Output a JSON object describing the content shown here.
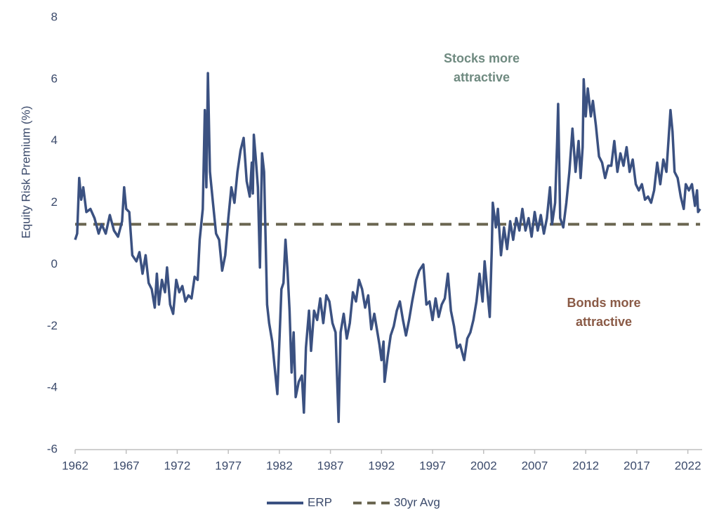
{
  "chart_data": {
    "type": "line",
    "y_label": "Equity Risk Premium (%)",
    "xlim": [
      1962,
      2023.4
    ],
    "ylim": [
      -6,
      8
    ],
    "xticks": [
      1962,
      1967,
      1972,
      1977,
      1982,
      1987,
      1992,
      1997,
      2002,
      2007,
      2012,
      2017,
      2022
    ],
    "yticks": [
      -6,
      -4,
      -2,
      0,
      2,
      4,
      6,
      8
    ],
    "annotations": [
      {
        "lines": [
          "Stocks more",
          "attractive"
        ],
        "color": "#6f8a80"
      },
      {
        "lines": [
          "Bonds more",
          "attractive"
        ],
        "color": "#8a5a46"
      }
    ],
    "series": [
      {
        "name": "ERP",
        "color": "#3b5181",
        "dashed": false,
        "x": [
          1962.0,
          1962.2,
          1962.4,
          1962.6,
          1962.8,
          1963.1,
          1963.5,
          1963.9,
          1964.3,
          1964.6,
          1965.0,
          1965.4,
          1965.8,
          1966.2,
          1966.6,
          1966.8,
          1967.0,
          1967.3,
          1967.6,
          1968.0,
          1968.3,
          1968.6,
          1968.9,
          1969.2,
          1969.5,
          1969.8,
          1970.0,
          1970.2,
          1970.5,
          1970.8,
          1971.0,
          1971.3,
          1971.6,
          1971.9,
          1972.2,
          1972.5,
          1972.8,
          1973.1,
          1973.4,
          1973.7,
          1974.0,
          1974.2,
          1974.5,
          1974.7,
          1974.85,
          1975.0,
          1975.2,
          1975.5,
          1975.8,
          1976.1,
          1976.4,
          1976.7,
          1977.0,
          1977.3,
          1977.6,
          1977.9,
          1978.2,
          1978.5,
          1978.8,
          1979.1,
          1979.3,
          1979.4,
          1979.5,
          1979.7,
          1979.9,
          1980.1,
          1980.3,
          1980.5,
          1980.8,
          1981.0,
          1981.3,
          1981.5,
          1981.8,
          1982.0,
          1982.2,
          1982.4,
          1982.6,
          1982.8,
          1983.0,
          1983.2,
          1983.4,
          1983.6,
          1983.9,
          1984.2,
          1984.4,
          1984.6,
          1984.9,
          1985.1,
          1985.4,
          1985.7,
          1986.0,
          1986.3,
          1986.6,
          1986.9,
          1987.2,
          1987.5,
          1987.8,
          1988.0,
          1988.3,
          1988.6,
          1988.9,
          1989.2,
          1989.5,
          1989.8,
          1990.1,
          1990.4,
          1990.7,
          1991.0,
          1991.3,
          1991.6,
          1991.8,
          1992.0,
          1992.2,
          1992.3,
          1992.6,
          1992.9,
          1993.2,
          1993.5,
          1993.8,
          1994.1,
          1994.4,
          1994.7,
          1995.0,
          1995.4,
          1995.7,
          1996.1,
          1996.4,
          1996.7,
          1997.0,
          1997.3,
          1997.6,
          1997.9,
          1998.2,
          1998.5,
          1998.8,
          1999.1,
          1999.4,
          1999.7,
          2000.1,
          2000.4,
          2000.7,
          2001.0,
          2001.3,
          2001.6,
          2001.9,
          2002.1,
          2002.4,
          2002.6,
          2002.8,
          2002.9,
          2003.2,
          2003.4,
          2003.7,
          2004.0,
          2004.3,
          2004.6,
          2004.9,
          2005.2,
          2005.5,
          2005.8,
          2006.1,
          2006.4,
          2006.7,
          2007.0,
          2007.3,
          2007.6,
          2007.9,
          2008.2,
          2008.5,
          2008.7,
          2009.0,
          2009.2,
          2009.3,
          2009.5,
          2009.8,
          2010.1,
          2010.4,
          2010.7,
          2011.0,
          2011.3,
          2011.5,
          2011.7,
          2011.8,
          2012.0,
          2012.2,
          2012.5,
          2012.7,
          2013.0,
          2013.3,
          2013.6,
          2013.9,
          2014.2,
          2014.5,
          2014.8,
          2015.1,
          2015.4,
          2015.7,
          2016.0,
          2016.3,
          2016.6,
          2016.9,
          2017.2,
          2017.5,
          2017.8,
          2018.1,
          2018.4,
          2018.7,
          2019.0,
          2019.3,
          2019.6,
          2019.9,
          2020.1,
          2020.3,
          2020.5,
          2020.7,
          2021.0,
          2021.3,
          2021.6,
          2021.8,
          2022.1,
          2022.4,
          2022.7,
          2022.9,
          2023.0,
          2023.2
        ],
        "values": [
          0.8,
          1.0,
          2.8,
          2.1,
          2.5,
          1.7,
          1.8,
          1.5,
          1.0,
          1.3,
          1.0,
          1.6,
          1.1,
          0.9,
          1.4,
          2.5,
          1.8,
          1.7,
          0.3,
          0.1,
          0.4,
          -0.3,
          0.3,
          -0.6,
          -0.8,
          -1.4,
          -0.3,
          -1.3,
          -0.5,
          -0.9,
          -0.1,
          -1.3,
          -1.6,
          -0.5,
          -0.9,
          -0.7,
          -1.2,
          -1.0,
          -1.1,
          -0.4,
          -0.5,
          0.8,
          1.8,
          5.0,
          2.5,
          6.2,
          3.0,
          2.0,
          1.0,
          0.8,
          -0.2,
          0.3,
          1.5,
          2.5,
          2.0,
          3.0,
          3.7,
          4.1,
          2.7,
          2.2,
          3.3,
          2.3,
          4.2,
          3.4,
          2.5,
          -0.1,
          3.6,
          3.0,
          -1.3,
          -1.9,
          -2.5,
          -3.2,
          -4.2,
          -2.5,
          -0.8,
          -0.6,
          0.8,
          -0.2,
          -1.5,
          -3.5,
          -2.2,
          -4.3,
          -3.8,
          -3.6,
          -4.8,
          -2.7,
          -1.5,
          -2.8,
          -1.5,
          -1.8,
          -1.1,
          -1.9,
          -1.0,
          -1.2,
          -1.9,
          -2.2,
          -5.1,
          -2.2,
          -1.6,
          -2.4,
          -1.9,
          -0.9,
          -1.2,
          -0.5,
          -0.8,
          -1.4,
          -1.0,
          -2.1,
          -1.6,
          -2.2,
          -2.6,
          -3.1,
          -2.5,
          -3.8,
          -3.0,
          -2.3,
          -2.0,
          -1.5,
          -1.2,
          -1.8,
          -2.3,
          -1.8,
          -1.2,
          -0.5,
          -0.2,
          0.0,
          -1.3,
          -1.2,
          -1.8,
          -1.1,
          -1.7,
          -1.3,
          -1.1,
          -0.3,
          -1.5,
          -2.0,
          -2.7,
          -2.6,
          -3.1,
          -2.4,
          -2.2,
          -1.8,
          -1.2,
          -0.3,
          -1.2,
          0.1,
          -1.0,
          -1.7,
          0.5,
          2.0,
          1.2,
          1.8,
          0.3,
          1.2,
          0.5,
          1.4,
          0.8,
          1.5,
          1.1,
          1.8,
          1.1,
          1.5,
          0.9,
          1.7,
          1.1,
          1.6,
          1.0,
          1.5,
          2.5,
          1.3,
          2.0,
          4.0,
          5.2,
          1.5,
          1.2,
          2.0,
          3.0,
          4.4,
          3.0,
          4.0,
          2.8,
          3.8,
          6.0,
          4.8,
          5.7,
          4.8,
          5.3,
          4.5,
          3.5,
          3.3,
          2.8,
          3.2,
          3.2,
          4.0,
          3.0,
          3.6,
          3.2,
          3.8,
          3.0,
          3.4,
          2.6,
          2.4,
          2.6,
          2.1,
          2.2,
          2.0,
          2.4,
          3.3,
          2.6,
          3.4,
          3.0,
          4.0,
          5.0,
          4.3,
          3.0,
          2.8,
          2.2,
          1.8,
          2.6,
          2.4,
          2.6,
          1.9,
          2.4,
          1.7,
          1.8
        ]
      },
      {
        "name": "30yr Avg",
        "color": "#6b6752",
        "dashed": true,
        "x": [
          1962,
          2023.2
        ],
        "values": [
          1.3,
          1.3
        ]
      }
    ]
  }
}
